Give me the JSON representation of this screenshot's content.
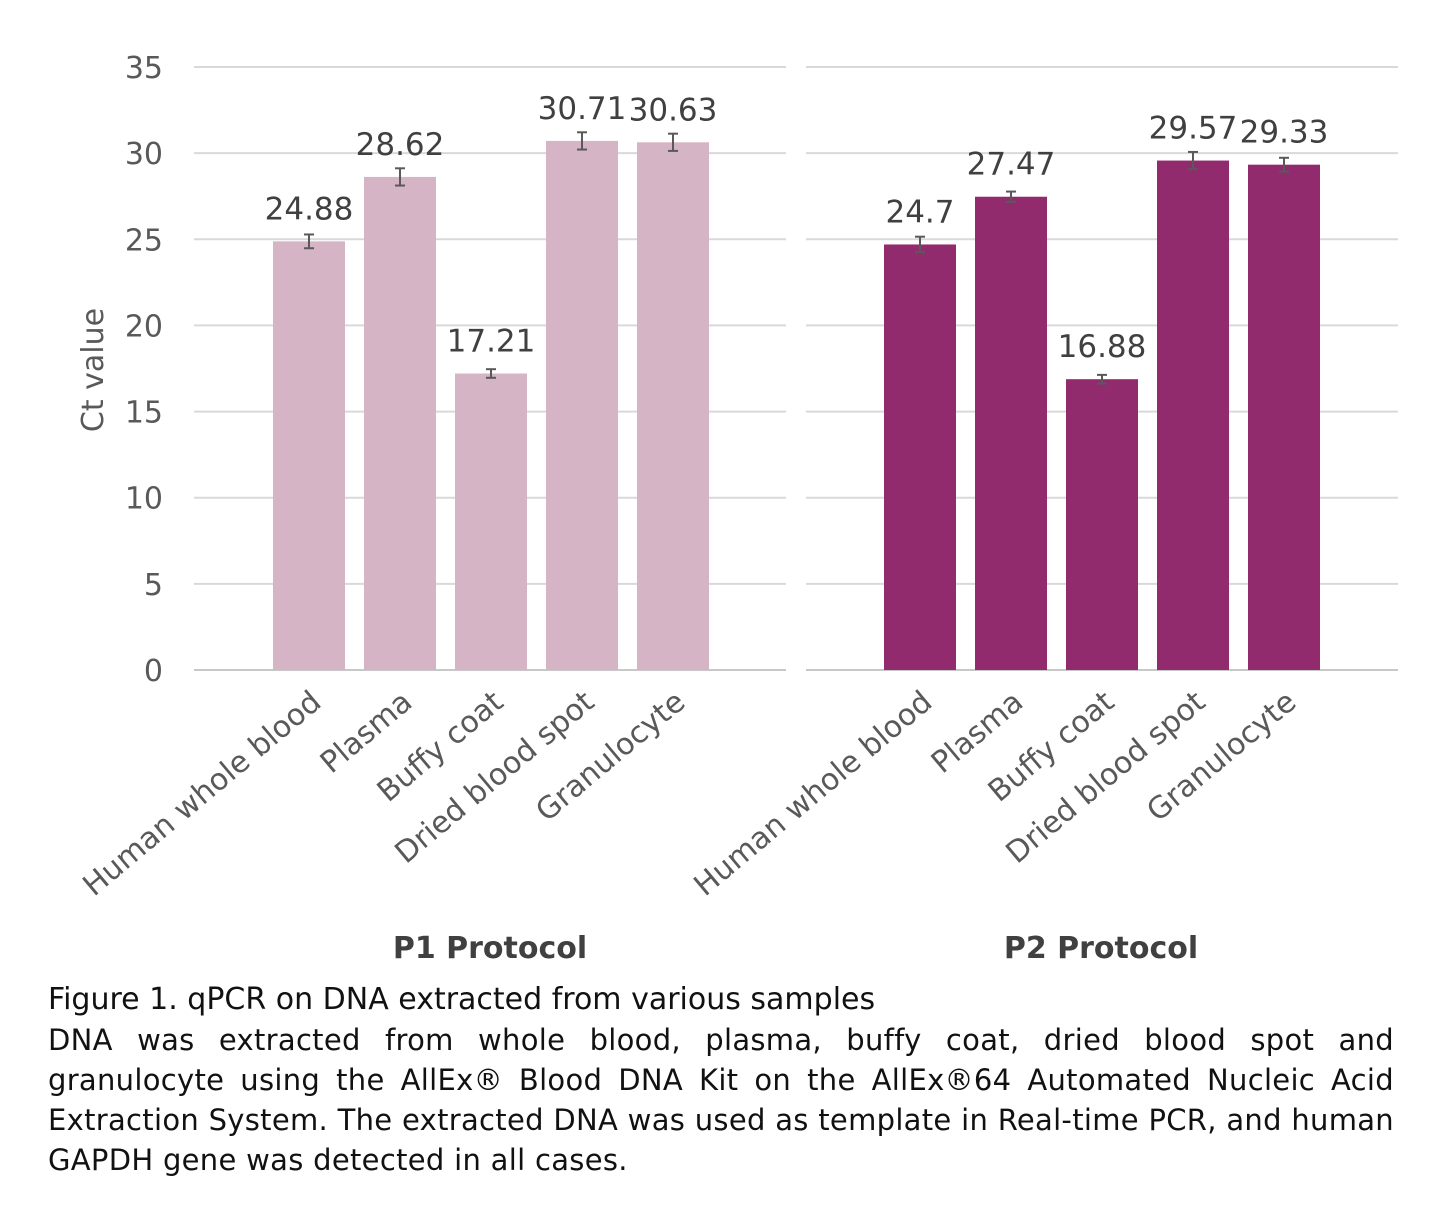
{
  "chart_data": {
    "type": "bar",
    "ylabel": "Ct value",
    "ylim": [
      0,
      35
    ],
    "yticks": [
      0,
      5,
      10,
      15,
      20,
      25,
      30,
      35
    ],
    "grid": true,
    "error_bars": true,
    "panels": [
      {
        "title": "P1 Protocol",
        "color": "#d5b4c6",
        "categories": [
          "Human whole blood",
          "Plasma",
          "Buffy coat",
          "Dried blood spot",
          "Granulocyte"
        ],
        "values": [
          24.88,
          28.62,
          17.21,
          30.71,
          30.63
        ],
        "value_labels": [
          "24.88",
          "28.62",
          "17.21",
          "30.71",
          "30.63"
        ],
        "errors": [
          0.4,
          0.5,
          0.25,
          0.5,
          0.5
        ]
      },
      {
        "title": "P2 Protocol",
        "color": "#922b6e",
        "categories": [
          "Human whole blood",
          "Plasma",
          "Buffy coat",
          "Dried blood spot",
          "Granulocyte"
        ],
        "values": [
          24.7,
          27.47,
          16.88,
          29.57,
          29.33
        ],
        "value_labels": [
          "24.7",
          "27.47",
          "16.88",
          "29.57",
          "29.33"
        ],
        "errors": [
          0.45,
          0.3,
          0.25,
          0.5,
          0.4
        ]
      }
    ]
  },
  "caption": {
    "title": "Figure 1. qPCR on DNA extracted from various samples",
    "body": "DNA was extracted from whole blood, plasma, buffy coat, dried blood spot and granulocyte using the AllEx® Blood DNA Kit on the AllEx®64 Automated Nucleic Acid Extraction System. The extracted DNA was used as template in Real-time PCR, and human GAPDH gene was detected in all cases."
  }
}
